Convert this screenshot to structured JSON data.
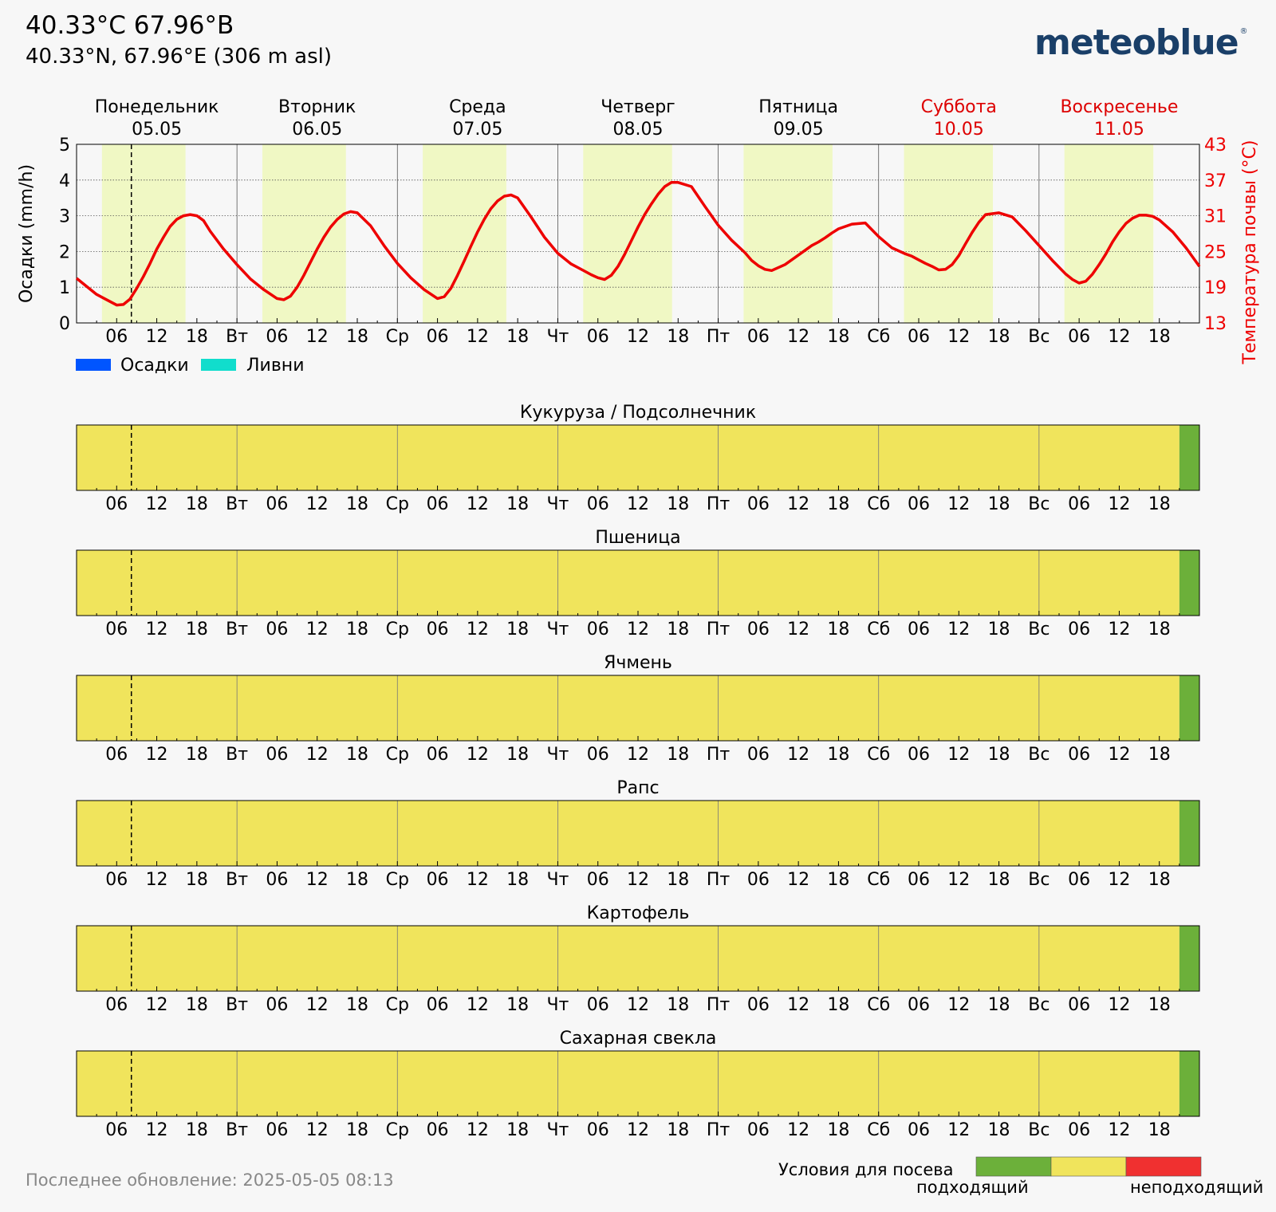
{
  "header": {
    "title": "40.33°C 67.96°В",
    "subtitle": "40.33°N, 67.96°E (306 m asl)",
    "logo": "meteoblue",
    "logo_mark": "®"
  },
  "colors": {
    "daylight": "#f0f8c4",
    "temperature_line": "#ee0000",
    "weekend_label": "#dd0000",
    "precip": "#0055ff",
    "showers": "#11ddcc",
    "suitable": "#6cb03a",
    "moderate": "#f0e45c",
    "unsuitable": "#f03030"
  },
  "chart_data": [
    {
      "type": "line",
      "days": [
        {
          "name": "Понедельник",
          "date": "05.05",
          "weekend": false
        },
        {
          "name": "Вторник",
          "date": "06.05",
          "weekend": false
        },
        {
          "name": "Среда",
          "date": "07.05",
          "weekend": false
        },
        {
          "name": "Четверг",
          "date": "08.05",
          "weekend": false
        },
        {
          "name": "Пятница",
          "date": "09.05",
          "weekend": false
        },
        {
          "name": "Суббота",
          "date": "10.05",
          "weekend": true
        },
        {
          "name": "Воскресенье",
          "date": "11.05",
          "weekend": true
        }
      ],
      "x_tick_labels": [
        "06",
        "12",
        "18",
        "Вт",
        "06",
        "12",
        "18",
        "Ср",
        "06",
        "12",
        "18",
        "Чт",
        "06",
        "12",
        "18",
        "Пт",
        "06",
        "12",
        "18",
        "Сб",
        "06",
        "12",
        "18",
        "Вс",
        "06",
        "12",
        "18"
      ],
      "ylabel_left": "Осадки (mm/h)",
      "ylim_left": [
        0,
        5
      ],
      "yticks_left": [
        "0",
        "1",
        "2",
        "3",
        "4",
        "5"
      ],
      "ylabel_right": "Температура почвы (°C)",
      "ylim_right": [
        13,
        43
      ],
      "yticks_right": [
        "13",
        "19",
        "25",
        "31",
        "37",
        "43"
      ],
      "grid": true,
      "current_time_hours": 8.2,
      "daylight_hours": [
        [
          3.8,
          16.3
        ],
        [
          27.8,
          40.3
        ],
        [
          51.8,
          64.3
        ],
        [
          75.8,
          89.1
        ],
        [
          99.8,
          113.1
        ],
        [
          123.8,
          137.1
        ],
        [
          147.8,
          161.1
        ]
      ],
      "legend": [
        "Осадки",
        "Ливни"
      ],
      "series": [
        {
          "name": "Температура почвы (°C)",
          "x_hours": [
            0,
            3,
            6,
            7,
            8,
            9,
            10,
            11,
            12,
            13,
            14,
            15,
            16,
            17,
            18,
            19,
            20,
            22,
            24,
            26,
            28,
            30,
            31,
            32,
            33,
            34,
            35,
            36,
            37,
            38,
            39,
            40,
            41,
            42,
            44,
            46,
            48,
            50,
            52,
            54,
            55,
            56,
            57,
            58,
            59,
            60,
            61,
            62,
            63,
            64,
            65,
            66,
            68,
            70,
            72,
            74,
            76,
            77,
            78,
            79,
            80,
            81,
            82,
            83,
            84,
            85,
            86,
            87,
            88,
            89,
            90,
            92,
            94,
            96,
            98,
            100,
            101,
            102,
            103,
            104,
            106,
            108,
            109,
            110,
            111,
            112,
            113,
            114,
            116,
            118,
            120,
            122,
            124,
            125,
            126,
            127,
            128,
            129,
            130,
            131,
            132,
            133,
            134,
            135,
            136,
            138,
            140,
            142,
            144,
            146,
            148,
            149,
            150,
            151,
            152,
            153,
            154,
            155,
            156,
            157,
            158,
            159,
            160,
            161,
            162,
            164,
            166,
            168
          ],
          "values": [
            20.5,
            17.8,
            16.0,
            16.1,
            17.0,
            18.8,
            20.8,
            23.0,
            25.4,
            27.4,
            29.2,
            30.4,
            31.0,
            31.2,
            31.0,
            30.2,
            28.4,
            25.4,
            22.8,
            20.4,
            18.6,
            17.1,
            16.9,
            17.5,
            19.0,
            21.0,
            23.2,
            25.4,
            27.4,
            29.1,
            30.4,
            31.3,
            31.7,
            31.5,
            29.3,
            26.0,
            23.0,
            20.6,
            18.6,
            17.1,
            17.4,
            18.8,
            21.0,
            23.4,
            25.9,
            28.3,
            30.4,
            32.2,
            33.5,
            34.3,
            34.5,
            34.0,
            30.8,
            27.4,
            24.7,
            22.9,
            21.7,
            21.1,
            20.6,
            20.3,
            21.0,
            22.5,
            24.5,
            26.8,
            29.1,
            31.2,
            33.0,
            34.6,
            35.9,
            36.6,
            36.6,
            35.9,
            32.6,
            29.4,
            26.9,
            24.8,
            23.5,
            22.6,
            22.0,
            21.8,
            22.8,
            24.4,
            25.2,
            26.0,
            26.6,
            27.3,
            28.1,
            28.8,
            29.6,
            29.8,
            27.5,
            25.6,
            24.6,
            24.2,
            23.6,
            23.0,
            22.5,
            21.9,
            22.0,
            22.8,
            24.3,
            26.3,
            28.2,
            29.9,
            31.2,
            31.5,
            30.8,
            28.5,
            26.0,
            23.5,
            21.2,
            20.3,
            19.7,
            20.0,
            21.2,
            22.8,
            24.6,
            26.6,
            28.3,
            29.7,
            30.6,
            31.1,
            31.1,
            30.9,
            30.3,
            28.3,
            25.6,
            22.5
          ]
        },
        {
          "name": "Осадки",
          "values": []
        },
        {
          "name": "Ливни",
          "values": []
        }
      ]
    },
    {
      "type": "heatmap",
      "title": "Кукуруза / Подсолнечник",
      "x_tick_labels": [
        "06",
        "12",
        "18",
        "Вт",
        "06",
        "12",
        "18",
        "Ср",
        "06",
        "12",
        "18",
        "Чт",
        "06",
        "12",
        "18",
        "Пт",
        "06",
        "12",
        "18",
        "Сб",
        "06",
        "12",
        "18",
        "Вс",
        "06",
        "12",
        "18"
      ],
      "segments": [
        {
          "from_hour": 0,
          "to_hour": 165,
          "condition": "moderate"
        },
        {
          "from_hour": 165,
          "to_hour": 168,
          "condition": "suitable"
        }
      ]
    },
    {
      "type": "heatmap",
      "title": "Пшеница",
      "x_tick_labels": [
        "06",
        "12",
        "18",
        "Вт",
        "06",
        "12",
        "18",
        "Ср",
        "06",
        "12",
        "18",
        "Чт",
        "06",
        "12",
        "18",
        "Пт",
        "06",
        "12",
        "18",
        "Сб",
        "06",
        "12",
        "18",
        "Вс",
        "06",
        "12",
        "18"
      ],
      "segments": [
        {
          "from_hour": 0,
          "to_hour": 165,
          "condition": "moderate"
        },
        {
          "from_hour": 165,
          "to_hour": 168,
          "condition": "suitable"
        }
      ]
    },
    {
      "type": "heatmap",
      "title": "Ячмень",
      "x_tick_labels": [
        "06",
        "12",
        "18",
        "Вт",
        "06",
        "12",
        "18",
        "Ср",
        "06",
        "12",
        "18",
        "Чт",
        "06",
        "12",
        "18",
        "Пт",
        "06",
        "12",
        "18",
        "Сб",
        "06",
        "12",
        "18",
        "Вс",
        "06",
        "12",
        "18"
      ],
      "segments": [
        {
          "from_hour": 0,
          "to_hour": 165,
          "condition": "moderate"
        },
        {
          "from_hour": 165,
          "to_hour": 168,
          "condition": "suitable"
        }
      ]
    },
    {
      "type": "heatmap",
      "title": "Рапс",
      "x_tick_labels": [
        "06",
        "12",
        "18",
        "Вт",
        "06",
        "12",
        "18",
        "Ср",
        "06",
        "12",
        "18",
        "Чт",
        "06",
        "12",
        "18",
        "Пт",
        "06",
        "12",
        "18",
        "Сб",
        "06",
        "12",
        "18",
        "Вс",
        "06",
        "12",
        "18"
      ],
      "segments": [
        {
          "from_hour": 0,
          "to_hour": 165,
          "condition": "moderate"
        },
        {
          "from_hour": 165,
          "to_hour": 168,
          "condition": "suitable"
        }
      ]
    },
    {
      "type": "heatmap",
      "title": "Картофель",
      "x_tick_labels": [
        "06",
        "12",
        "18",
        "Вт",
        "06",
        "12",
        "18",
        "Ср",
        "06",
        "12",
        "18",
        "Чт",
        "06",
        "12",
        "18",
        "Пт",
        "06",
        "12",
        "18",
        "Сб",
        "06",
        "12",
        "18",
        "Вс",
        "06",
        "12",
        "18"
      ],
      "segments": [
        {
          "from_hour": 0,
          "to_hour": 165,
          "condition": "moderate"
        },
        {
          "from_hour": 165,
          "to_hour": 168,
          "condition": "suitable"
        }
      ]
    },
    {
      "type": "heatmap",
      "title": "Сахарная свекла",
      "x_tick_labels": [
        "06",
        "12",
        "18",
        "Вт",
        "06",
        "12",
        "18",
        "Ср",
        "06",
        "12",
        "18",
        "Чт",
        "06",
        "12",
        "18",
        "Пт",
        "06",
        "12",
        "18",
        "Сб",
        "06",
        "12",
        "18",
        "Вс",
        "06",
        "12",
        "18"
      ],
      "segments": [
        {
          "from_hour": 0,
          "to_hour": 165,
          "condition": "moderate"
        },
        {
          "from_hour": 165,
          "to_hour": 168,
          "condition": "suitable"
        }
      ]
    }
  ],
  "footer": {
    "last_update": "Последнее обновление: 2025-05-05 08:13",
    "legend_title": "Условия для посева",
    "legend_good": "подходящий",
    "legend_bad": "неподходящий",
    "legend_colors": [
      "suitable",
      "moderate",
      "unsuitable"
    ]
  }
}
